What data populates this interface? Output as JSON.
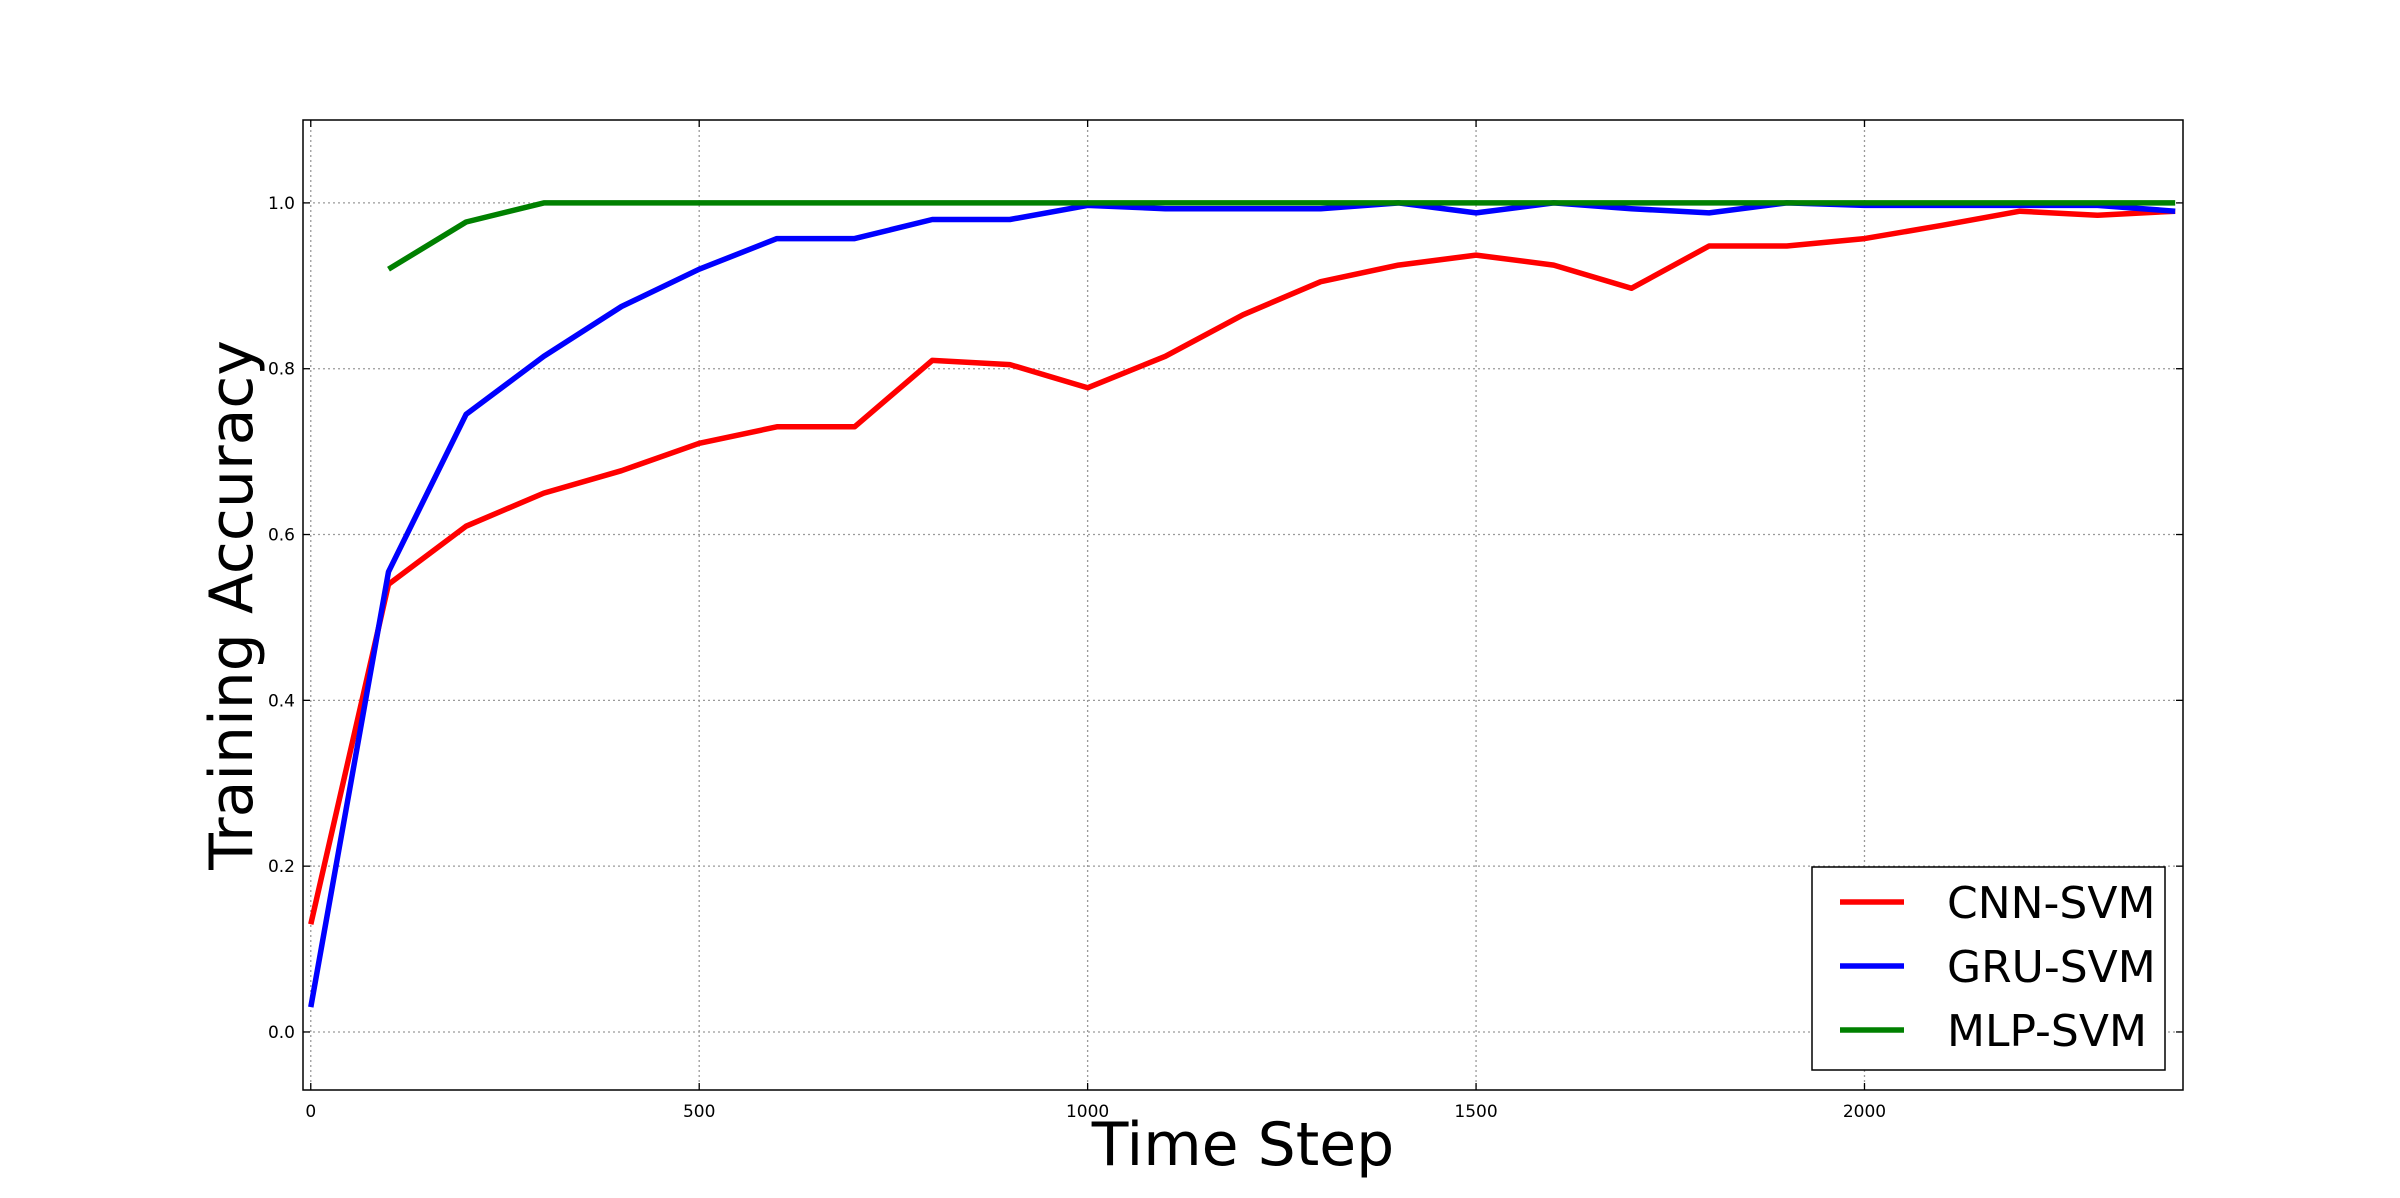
{
  "chart_data": {
    "type": "line",
    "title": "",
    "xlabel": "Time Step",
    "ylabel": "Training Accuracy",
    "xlim": [
      -10,
      2410
    ],
    "ylim": [
      -0.07,
      1.1
    ],
    "xticks": [
      0,
      500,
      1000,
      1500,
      2000
    ],
    "yticks": [
      0.0,
      0.2,
      0.4,
      0.6,
      0.8,
      1.0
    ],
    "ytick_labels": [
      "0.0",
      "0.2",
      "0.4",
      "0.6",
      "0.8",
      "1.0"
    ],
    "grid": true,
    "legend_position": "bottom-right",
    "series": [
      {
        "name": "CNN-SVM",
        "color": "#ff0000",
        "x": [
          0,
          100,
          200,
          300,
          400,
          500,
          600,
          700,
          800,
          900,
          1000,
          1100,
          1200,
          1300,
          1400,
          1500,
          1600,
          1700,
          1800,
          1900,
          2000,
          2100,
          2200,
          2300,
          2400
        ],
        "y": [
          0.13,
          0.54,
          0.61,
          0.65,
          0.677,
          0.71,
          0.73,
          0.73,
          0.81,
          0.805,
          0.777,
          0.815,
          0.865,
          0.905,
          0.925,
          0.937,
          0.925,
          0.897,
          0.948,
          0.948,
          0.957,
          0.973,
          0.99,
          0.985,
          0.99
        ]
      },
      {
        "name": "GRU-SVM",
        "color": "#0000ff",
        "x": [
          0,
          100,
          200,
          300,
          400,
          500,
          600,
          700,
          800,
          900,
          1000,
          1100,
          1200,
          1300,
          1400,
          1500,
          1600,
          1700,
          1800,
          1900,
          2000,
          2100,
          2200,
          2300,
          2400
        ],
        "y": [
          0.03,
          0.555,
          0.745,
          0.815,
          0.875,
          0.92,
          0.957,
          0.957,
          0.98,
          0.98,
          0.997,
          0.993,
          0.993,
          0.993,
          1.0,
          0.988,
          1.0,
          0.993,
          0.988,
          1.0,
          0.997,
          0.997,
          0.997,
          0.997,
          0.99
        ]
      },
      {
        "name": "MLP-SVM",
        "color": "#008000",
        "x": [
          100,
          200,
          300,
          400,
          500,
          600,
          700,
          800,
          900,
          1000,
          1100,
          1200,
          1300,
          1400,
          1500,
          1600,
          1700,
          1800,
          1900,
          2000,
          2100,
          2200,
          2300,
          2400
        ],
        "y": [
          0.92,
          0.977,
          1.0,
          1.0,
          1.0,
          1.0,
          1.0,
          1.0,
          1.0,
          1.0,
          1.0,
          1.0,
          1.0,
          1.0,
          1.0,
          1.0,
          1.0,
          1.0,
          1.0,
          1.0,
          1.0,
          1.0,
          1.0,
          1.0
        ]
      }
    ]
  }
}
